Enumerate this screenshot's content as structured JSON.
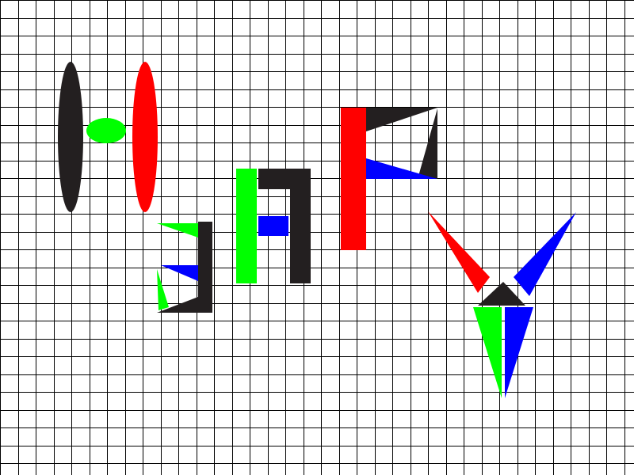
{
  "colors": {
    "background": "#ffffff",
    "grid": "#000000",
    "black": "#231f20",
    "red": "#ff0000",
    "green": "#00ff00",
    "blue": "#0000ff"
  }
}
